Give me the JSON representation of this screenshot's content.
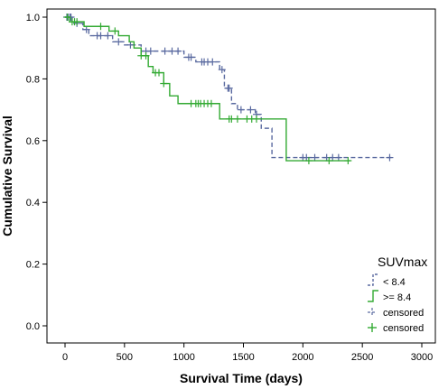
{
  "chart_data": {
    "type": "line",
    "subtype": "kaplan-meier",
    "title": "",
    "xlabel": "Survival Time (days)",
    "ylabel": "Cumulative Survival",
    "xlim": [
      0,
      3000
    ],
    "ylim": [
      0.0,
      1.0
    ],
    "xticks": [
      0,
      500,
      1000,
      1500,
      2000,
      2500,
      3000
    ],
    "yticks": [
      0.0,
      0.2,
      0.4,
      0.6,
      0.8,
      1.0
    ],
    "xtick_labels": [
      "0",
      "500",
      "1000",
      "1500",
      "2000",
      "2500",
      "3000"
    ],
    "ytick_labels": [
      "0.0",
      "0.2",
      "0.4",
      "0.6",
      "0.8",
      "1.0"
    ],
    "grid": false,
    "legend": {
      "title": "SUVmax",
      "placement": "bottom-right",
      "entries": [
        "< 8.4",
        ">= 8.4",
        "censored",
        "censored"
      ]
    },
    "series": [
      {
        "name": "< 8.4",
        "color": "#5a6aa0",
        "dash": "dashed",
        "steps": [
          [
            0,
            1.0
          ],
          [
            60,
            0.98
          ],
          [
            150,
            0.96
          ],
          [
            200,
            0.94
          ],
          [
            400,
            0.92
          ],
          [
            500,
            0.91
          ],
          [
            640,
            0.89
          ],
          [
            1000,
            0.87
          ],
          [
            1100,
            0.855
          ],
          [
            1300,
            0.83
          ],
          [
            1340,
            0.77
          ],
          [
            1400,
            0.72
          ],
          [
            1450,
            0.7
          ],
          [
            1600,
            0.685
          ],
          [
            1650,
            0.64
          ],
          [
            1740,
            0.545
          ],
          [
            2750,
            0.545
          ]
        ],
        "censored": [
          15,
          25,
          40,
          50,
          100,
          180,
          270,
          300,
          360,
          450,
          550,
          680,
          720,
          840,
          900,
          950,
          1040,
          1060,
          1150,
          1170,
          1200,
          1240,
          1320,
          1370,
          1380,
          1480,
          1560,
          1610,
          2000,
          2030,
          2100,
          2200,
          2250,
          2300,
          2730
        ]
      },
      {
        "name": ">= 8.4",
        "color": "#33aa33",
        "dash": "solid",
        "steps": [
          [
            0,
            1.0
          ],
          [
            40,
            0.985
          ],
          [
            160,
            0.97
          ],
          [
            370,
            0.955
          ],
          [
            450,
            0.94
          ],
          [
            540,
            0.92
          ],
          [
            580,
            0.9
          ],
          [
            640,
            0.875
          ],
          [
            700,
            0.84
          ],
          [
            740,
            0.82
          ],
          [
            830,
            0.785
          ],
          [
            880,
            0.745
          ],
          [
            950,
            0.72
          ],
          [
            1300,
            0.67
          ],
          [
            1860,
            0.535
          ],
          [
            2400,
            0.535
          ]
        ],
        "censored": [
          20,
          60,
          80,
          100,
          300,
          420,
          640,
          680,
          760,
          790,
          830,
          1060,
          1100,
          1120,
          1140,
          1170,
          1200,
          1230,
          1380,
          1400,
          1450,
          1530,
          1570,
          1610,
          2050,
          2220,
          2380
        ]
      }
    ]
  }
}
